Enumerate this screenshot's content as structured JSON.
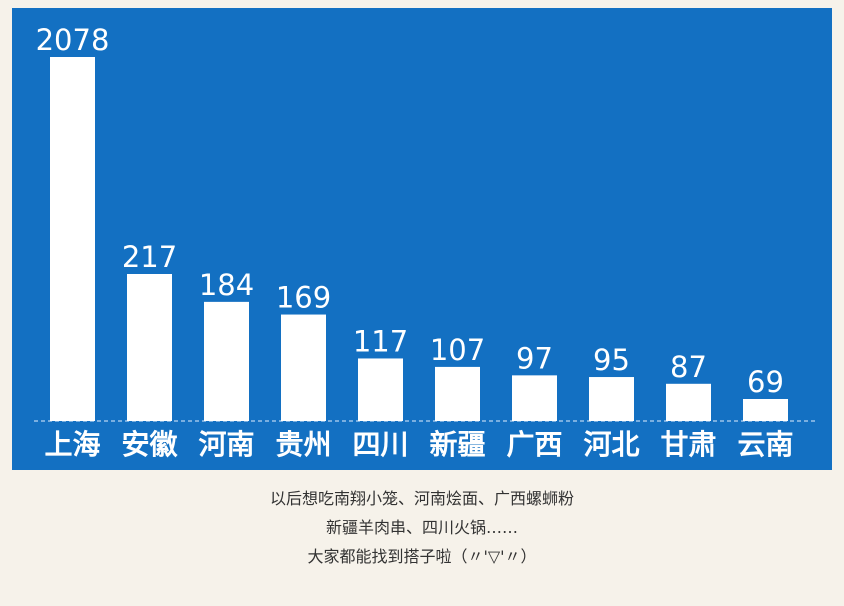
{
  "chart_data": {
    "type": "bar",
    "categories": [
      "上海",
      "安徽",
      "河南",
      "贵州",
      "四川",
      "新疆",
      "广西",
      "河北",
      "甘肃",
      "云南"
    ],
    "values": [
      2078,
      217,
      184,
      169,
      117,
      107,
      97,
      95,
      87,
      69
    ],
    "title": "",
    "xlabel": "",
    "ylabel": "",
    "grid": false,
    "legend": "none",
    "data_labels": true
  },
  "colors": {
    "panel_background": "#1370c2",
    "bar_fill": "#ffffff",
    "label_text": "#ffffff",
    "baseline": "#9cc4ea",
    "page_background": "#f6f2ea",
    "caption_text": "#333333"
  },
  "caption": {
    "lines": [
      "以后想吃南翔小笼、河南烩面、广西螺蛳粉",
      "新疆羊肉串、四川火锅……",
      "大家都能找到搭子啦（〃'▽'〃）"
    ]
  }
}
